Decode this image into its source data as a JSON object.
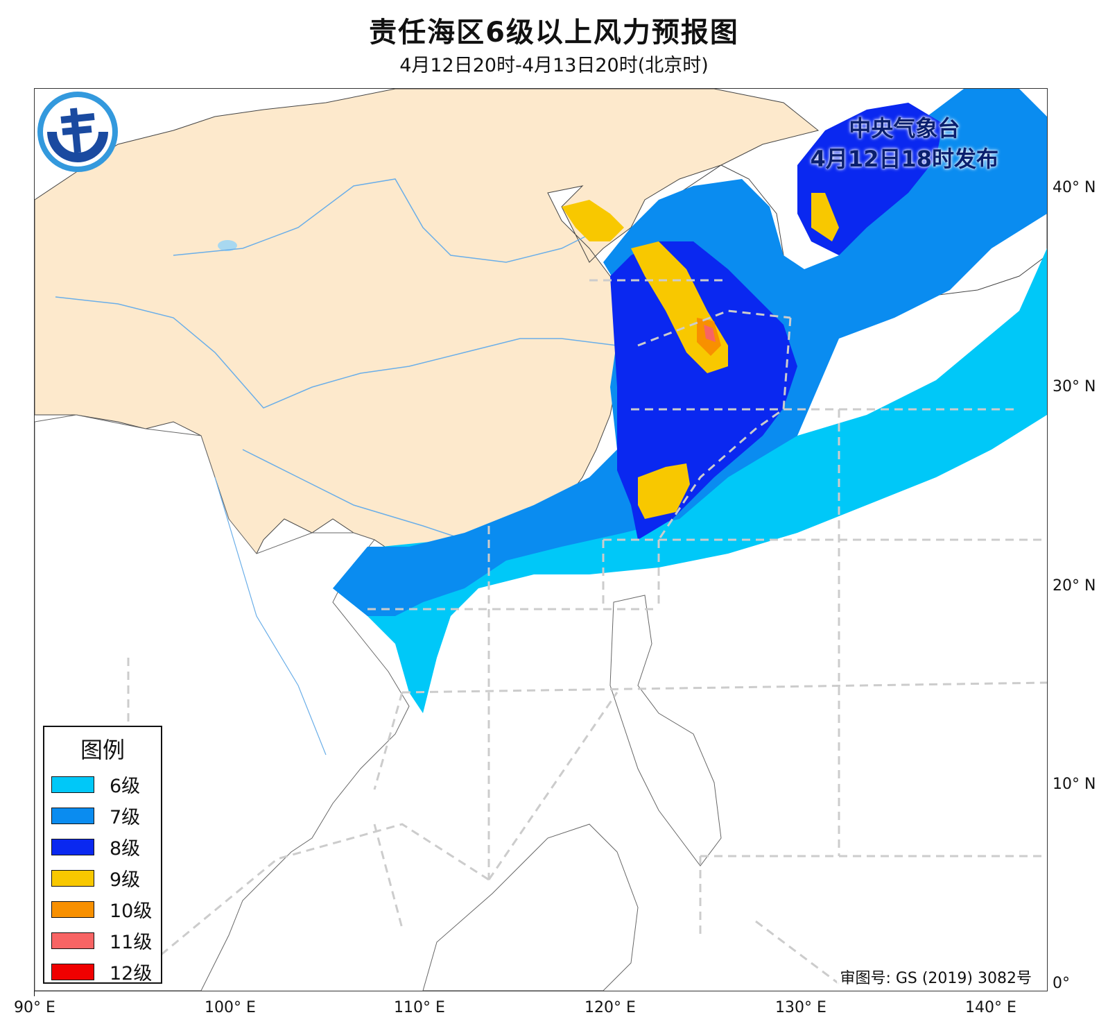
{
  "title": "责任海区6级以上风力预报图",
  "subtitle": "4月12日20时-4月13日20时(北京时)",
  "issuer": {
    "name": "中央气象台",
    "time": "4月12日18时发布"
  },
  "approval": "审图号: GS (2019) 3082号",
  "legend": {
    "title": "图例",
    "items": [
      {
        "label": "6级",
        "color": "#00c8f8"
      },
      {
        "label": "7级",
        "color": "#0a8cf0"
      },
      {
        "label": "8级",
        "color": "#0a28f0"
      },
      {
        "label": "9级",
        "color": "#f8c800"
      },
      {
        "label": "10级",
        "color": "#f89000"
      },
      {
        "label": "11级",
        "color": "#f86464"
      },
      {
        "label": "12级",
        "color": "#f00000"
      }
    ]
  },
  "axes": {
    "lon_labels": [
      "90° E",
      "100° E",
      "110° E",
      "120° E",
      "130° E",
      "140° E"
    ],
    "lat_labels": [
      "40° N",
      "30° N",
      "20° N",
      "10° N",
      "0°"
    ]
  },
  "colors": {
    "land_china": "#fde9cc",
    "sea": "#ffffff",
    "border": "#333333",
    "river": "#6aaee8",
    "dashed_zone": "#cccccc"
  }
}
